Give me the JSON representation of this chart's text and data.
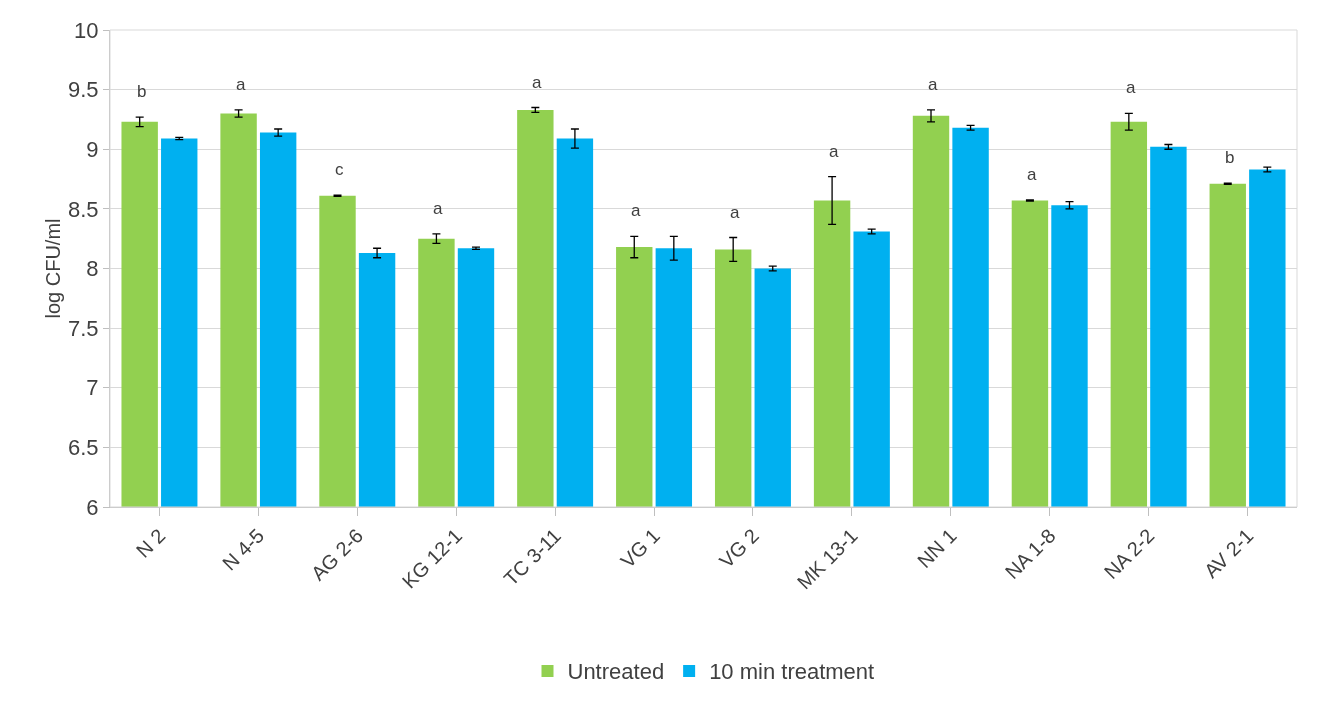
{
  "chart_data": {
    "type": "bar",
    "ylabel": "log CFU/ml",
    "categories": [
      "N 2",
      "N 4-5",
      "AG 2-6",
      "KG 12-1",
      "TC 3-11",
      "VG 1",
      "VG 2",
      "MK 13-1",
      "NN 1",
      "NA 1-8",
      "NA 2-2",
      "AV 2-1"
    ],
    "series": [
      {
        "name": "Untreated",
        "color": "#92d050",
        "values": [
          9.23,
          9.3,
          8.61,
          8.25,
          9.33,
          8.18,
          8.16,
          8.57,
          9.28,
          8.57,
          9.23,
          8.71
        ],
        "errors": [
          0.04,
          0.03,
          0.005,
          0.04,
          0.02,
          0.09,
          0.1,
          0.2,
          0.05,
          0.005,
          0.07,
          0.005
        ]
      },
      {
        "name": "10 min treatment",
        "color": "#00b0f0",
        "values": [
          9.09,
          9.14,
          8.13,
          8.17,
          9.09,
          8.17,
          8.0,
          8.31,
          9.18,
          8.53,
          9.02,
          8.83
        ],
        "errors": [
          0.01,
          0.03,
          0.04,
          0.01,
          0.08,
          0.1,
          0.02,
          0.02,
          0.02,
          0.03,
          0.02,
          0.02
        ]
      }
    ],
    "ylim": [
      6,
      10
    ],
    "yticks": [
      6,
      6.5,
      7,
      7.5,
      8,
      8.5,
      9,
      9.5,
      10
    ],
    "grid": "y",
    "legend": "bottom",
    "annotations": [
      "b",
      "a",
      "c",
      "a",
      "a",
      "a",
      "a",
      "a",
      "a",
      "a",
      "a",
      "b"
    ]
  }
}
